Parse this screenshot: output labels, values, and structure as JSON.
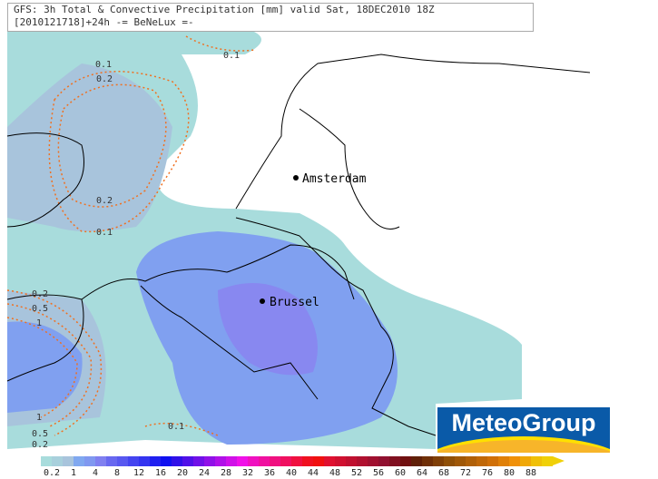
{
  "header": {
    "line1": "GFS: 3h Total & Convective Precipitation [mm] valid Sat, 18DEC2010 18Z",
    "line2": "[2010121718]+24h -= BeNeLux =-"
  },
  "cities": [
    "Amsterdam",
    "Brussel"
  ],
  "contour_labels": [
    "0.1",
    "0.2",
    "0.5",
    "1"
  ],
  "logo": "MeteoGroup",
  "legend": {
    "labels": [
      "0.2",
      "1",
      "4",
      "8",
      "12",
      "16",
      "20",
      "24",
      "28",
      "32",
      "36",
      "40",
      "44",
      "48",
      "52",
      "56",
      "60",
      "64",
      "68",
      "72",
      "76",
      "80",
      "88"
    ],
    "colors": [
      "#a8dcdc",
      "#a8d0dc",
      "#a8c4dc",
      "#80a8f0",
      "#8098f0",
      "#8080f0",
      "#6868f0",
      "#5858f0",
      "#4444f0",
      "#3434f0",
      "#2020f0",
      "#1010f0",
      "#3010e8",
      "#5010e8",
      "#7010e8",
      "#9010e8",
      "#b010e8",
      "#d010e8",
      "#f010e8",
      "#f010c0",
      "#f010a0",
      "#f01080",
      "#f01060",
      "#f01040",
      "#f01020",
      "#f01010",
      "#e01030",
      "#d01030",
      "#c01030",
      "#b01030",
      "#a01030",
      "#901030",
      "#801020",
      "#701010",
      "#602008",
      "#703008",
      "#804008",
      "#905008",
      "#a05808",
      "#b06008",
      "#c06808",
      "#d07008",
      "#e08008",
      "#f09008",
      "#f0a808",
      "#f0c008",
      "#f0d008"
    ]
  }
}
